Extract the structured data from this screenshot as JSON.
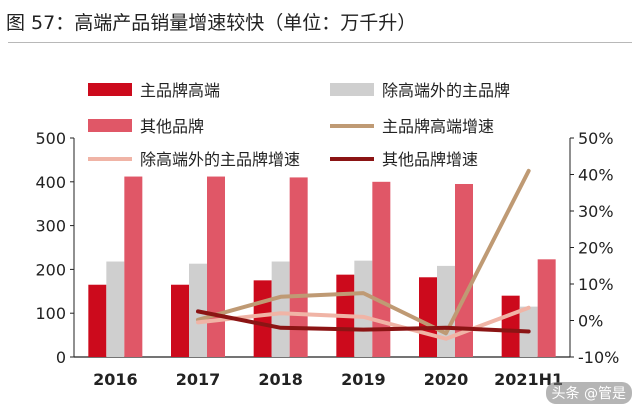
{
  "figure": {
    "title": "图 57：高端产品销量增速较快（单位：万千升）",
    "watermark": "头条 @管是"
  },
  "colors": {
    "main_brand": "#cc0a1c",
    "other_main": "#cfcfcf",
    "other_brand": "#e05767",
    "main_growth": "#bf9a74",
    "other_main_growth": "#f0b4a6",
    "other_brand_growth": "#8b1414"
  },
  "chart_data": {
    "type": "bar",
    "categories": [
      "2016",
      "2017",
      "2018",
      "2019",
      "2020",
      "2021H1"
    ],
    "ylim": [
      0,
      500
    ],
    "y2lim": [
      -10,
      50
    ],
    "yticks": [
      "0",
      "100",
      "200",
      "300",
      "400",
      "500"
    ],
    "y2ticks": [
      "-10%",
      "0%",
      "10%",
      "20%",
      "30%",
      "40%",
      "50%"
    ],
    "grid": false,
    "legend_position": "top",
    "series": [
      {
        "name": "主品牌高端",
        "type": "bar",
        "axis": "left",
        "color_key": "main_brand",
        "values": [
          165,
          165,
          175,
          188,
          182,
          140
        ]
      },
      {
        "name": "除高端外的主品牌",
        "type": "bar",
        "axis": "left",
        "color_key": "other_main",
        "values": [
          218,
          213,
          218,
          220,
          208,
          115
        ]
      },
      {
        "name": "其他品牌",
        "type": "bar",
        "axis": "left",
        "color_key": "other_brand",
        "values": [
          412,
          412,
          410,
          400,
          395,
          223
        ]
      },
      {
        "name": "主品牌高端增速",
        "type": "line",
        "axis": "right",
        "color_key": "main_growth",
        "values": [
          null,
          0.2,
          6.5,
          7.5,
          -3.5,
          41.0
        ]
      },
      {
        "name": "除高端外的主品牌增速",
        "type": "line",
        "axis": "right",
        "color_key": "other_main_growth",
        "values": [
          null,
          -0.5,
          2.0,
          1.0,
          -5.0,
          3.5
        ]
      },
      {
        "name": "其他品牌增速",
        "type": "line",
        "axis": "right",
        "color_key": "other_brand_growth",
        "values": [
          null,
          2.5,
          -2.0,
          -2.5,
          -2.0,
          -3.0
        ]
      }
    ]
  }
}
